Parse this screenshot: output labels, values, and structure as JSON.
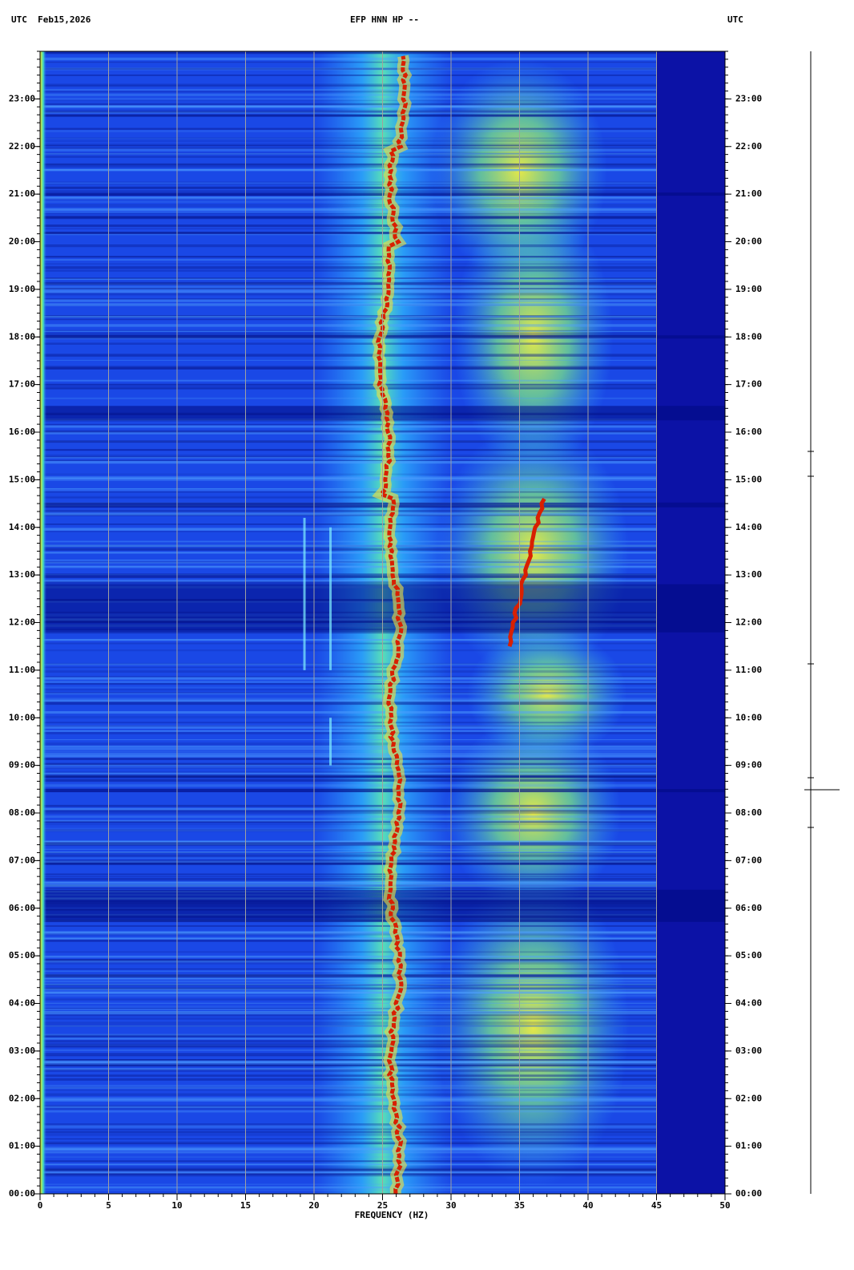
{
  "chart_data": {
    "type": "spectrogram",
    "title": "EFP HNN HP --",
    "header_left": "UTC  Feb15,2026",
    "header_right": "UTC",
    "x_label": "FREQUENCY (HZ)",
    "xlim": [
      0,
      50
    ],
    "xticks": [
      0,
      5,
      10,
      15,
      20,
      25,
      30,
      35,
      40,
      45,
      50
    ],
    "ylim": [
      0,
      24
    ],
    "yticks": [
      {
        "value": 0,
        "label": "00:00"
      },
      {
        "value": 1,
        "label": "01:00"
      },
      {
        "value": 2,
        "label": "02:00"
      },
      {
        "value": 3,
        "label": "03:00"
      },
      {
        "value": 4,
        "label": "04:00"
      },
      {
        "value": 5,
        "label": "05:00"
      },
      {
        "value": 6,
        "label": "06:00"
      },
      {
        "value": 7,
        "label": "07:00"
      },
      {
        "value": 8,
        "label": "08:00"
      },
      {
        "value": 9,
        "label": "09:00"
      },
      {
        "value": 10,
        "label": "10:00"
      },
      {
        "value": 11,
        "label": "11:00"
      },
      {
        "value": 12,
        "label": "12:00"
      },
      {
        "value": 13,
        "label": "13:00"
      },
      {
        "value": 14,
        "label": "14:00"
      },
      {
        "value": 15,
        "label": "15:00"
      },
      {
        "value": 16,
        "label": "16:00"
      },
      {
        "value": 17,
        "label": "17:00"
      },
      {
        "value": 18,
        "label": "18:00"
      },
      {
        "value": 19,
        "label": "19:00"
      },
      {
        "value": 20,
        "label": "20:00"
      },
      {
        "value": 21,
        "label": "21:00"
      },
      {
        "value": 22,
        "label": "22:00"
      },
      {
        "value": 23,
        "label": "23:00"
      }
    ],
    "grid": true
  }
}
